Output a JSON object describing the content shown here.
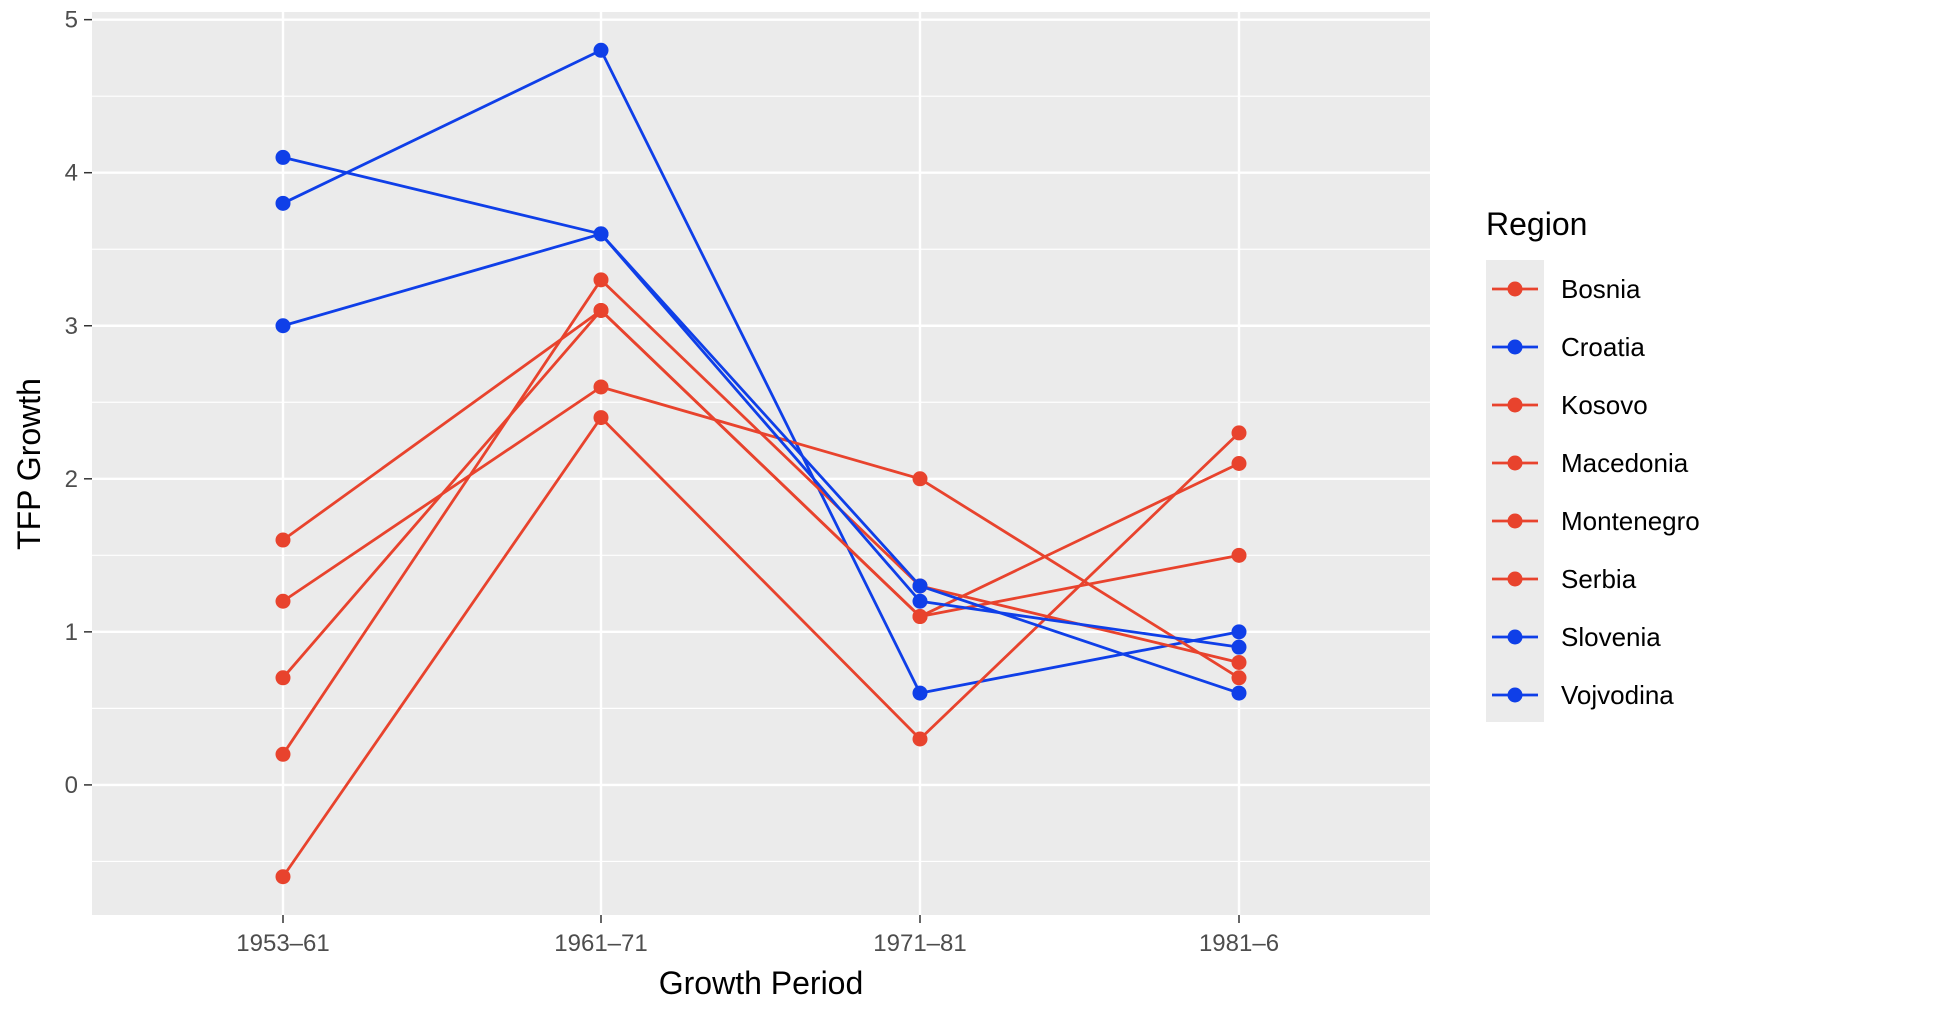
{
  "chart_data": {
    "type": "line",
    "title": "",
    "xlabel": "Growth Period",
    "ylabel": "TFP Growth",
    "categories": [
      "1953–61",
      "1961–71",
      "1971–81",
      "1981–6"
    ],
    "ylim": [
      -0.85,
      5.05
    ],
    "yticks": [
      0,
      1,
      2,
      3,
      4,
      5
    ],
    "ytick_labels": [
      "0",
      "1",
      "2",
      "3",
      "4",
      "5"
    ],
    "grid": true,
    "legend": {
      "title": "Region",
      "position": "right"
    },
    "series": [
      {
        "name": "Bosnia",
        "color": "#E8432D",
        "values": [
          0.7,
          3.1,
          1.1,
          2.1
        ]
      },
      {
        "name": "Croatia",
        "color": "#0F3FE8",
        "values": [
          3.8,
          4.8,
          0.6,
          1.0
        ]
      },
      {
        "name": "Kosovo",
        "color": "#E8432D",
        "values": [
          0.2,
          3.3,
          1.3,
          0.8
        ]
      },
      {
        "name": "Macedonia",
        "color": "#E8432D",
        "values": [
          1.2,
          2.6,
          2.0,
          0.7
        ]
      },
      {
        "name": "Montenegro",
        "color": "#E8432D",
        "values": [
          -0.6,
          2.4,
          0.3,
          2.3
        ]
      },
      {
        "name": "Serbia",
        "color": "#E8432D",
        "values": [
          1.6,
          3.1,
          1.1,
          1.5
        ]
      },
      {
        "name": "Slovenia",
        "color": "#0F3FE8",
        "values": [
          3.0,
          3.6,
          1.2,
          0.9
        ]
      },
      {
        "name": "Vojvodina",
        "color": "#0F3FE8",
        "values": [
          4.1,
          3.6,
          1.3,
          0.6
        ]
      }
    ]
  }
}
